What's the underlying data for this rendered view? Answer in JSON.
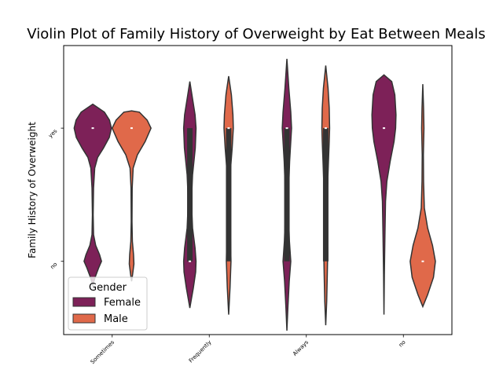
{
  "chart_data": {
    "type": "violin",
    "title": "Violin Plot of Family History of Overweight by Eat Between Meals",
    "xlabel": "",
    "ylabel": "Family History of Overweight",
    "categories": [
      "Sometimes",
      "Frequently",
      "Always",
      "no"
    ],
    "y_categories": [
      "yes",
      "no"
    ],
    "ylim": [
      -0.55,
      1.62
    ],
    "grid": false,
    "legend": {
      "title": "Gender",
      "placement": "lower-left",
      "entries": [
        "Female",
        "Male"
      ]
    },
    "series": [
      {
        "name": "Female",
        "color": "#7d2158",
        "violins": [
          {
            "category": "Sometimes",
            "ymin": -0.18,
            "ymax": 1.18,
            "median": 1,
            "q1": 1,
            "q3": 1,
            "profile": [
              [
                -0.18,
                0.0
              ],
              [
                -0.12,
                0.12
              ],
              [
                -0.05,
                0.3
              ],
              [
                0.0,
                0.45
              ],
              [
                0.05,
                0.35
              ],
              [
                0.12,
                0.15
              ],
              [
                0.2,
                0.04
              ],
              [
                0.35,
                0.02
              ],
              [
                0.55,
                0.04
              ],
              [
                0.7,
                0.1
              ],
              [
                0.78,
                0.25
              ],
              [
                0.85,
                0.55
              ],
              [
                0.93,
                0.85
              ],
              [
                1.0,
                0.96
              ],
              [
                1.06,
                0.86
              ],
              [
                1.12,
                0.6
              ],
              [
                1.18,
                0.0
              ]
            ]
          },
          {
            "category": "Frequently",
            "ymin": -0.35,
            "ymax": 1.35,
            "median": 0,
            "q1": 0,
            "q3": 1,
            "profile": [
              [
                -0.35,
                0.0
              ],
              [
                -0.2,
                0.18
              ],
              [
                -0.08,
                0.3
              ],
              [
                0.0,
                0.32
              ],
              [
                0.1,
                0.27
              ],
              [
                0.25,
                0.14
              ],
              [
                0.45,
                0.08
              ],
              [
                0.65,
                0.14
              ],
              [
                0.85,
                0.28
              ],
              [
                1.0,
                0.32
              ],
              [
                1.1,
                0.27
              ],
              [
                1.22,
                0.14
              ],
              [
                1.35,
                0.0
              ]
            ]
          },
          {
            "category": "Always",
            "ymin": -0.52,
            "ymax": 1.52,
            "median": 1,
            "q1": 0,
            "q3": 1,
            "profile": [
              [
                -0.52,
                0.0
              ],
              [
                -0.35,
                0.05
              ],
              [
                -0.15,
                0.12
              ],
              [
                0.0,
                0.2
              ],
              [
                0.15,
                0.13
              ],
              [
                0.35,
                0.08
              ],
              [
                0.55,
                0.09
              ],
              [
                0.75,
                0.14
              ],
              [
                0.9,
                0.2
              ],
              [
                1.0,
                0.24
              ],
              [
                1.12,
                0.2
              ],
              [
                1.3,
                0.1
              ],
              [
                1.52,
                0.0
              ]
            ]
          },
          {
            "category": "no",
            "ymin": -0.4,
            "ymax": 1.4,
            "median": 1,
            "q1": 1,
            "q3": 1,
            "profile": [
              [
                -0.4,
                0.0
              ],
              [
                -0.1,
                0.02
              ],
              [
                0.2,
                0.05
              ],
              [
                0.45,
                0.08
              ],
              [
                0.6,
                0.15
              ],
              [
                0.75,
                0.32
              ],
              [
                0.9,
                0.52
              ],
              [
                1.0,
                0.6
              ],
              [
                1.1,
                0.62
              ],
              [
                1.25,
                0.56
              ],
              [
                1.35,
                0.4
              ],
              [
                1.4,
                0.0
              ]
            ]
          }
        ]
      },
      {
        "name": "Male",
        "color": "#e0694a",
        "violins": [
          {
            "category": "Sometimes",
            "ymin": -0.15,
            "ymax": 1.13,
            "median": 1,
            "q1": 1,
            "q3": 1,
            "profile": [
              [
                -0.15,
                0.0
              ],
              [
                -0.1,
                0.05
              ],
              [
                -0.02,
                0.12
              ],
              [
                0.05,
                0.1
              ],
              [
                0.15,
                0.04
              ],
              [
                0.3,
                0.02
              ],
              [
                0.55,
                0.03
              ],
              [
                0.7,
                0.08
              ],
              [
                0.8,
                0.3
              ],
              [
                0.9,
                0.7
              ],
              [
                1.0,
                1.0
              ],
              [
                1.06,
                0.8
              ],
              [
                1.12,
                0.4
              ],
              [
                1.13,
                0.0
              ]
            ]
          },
          {
            "category": "Frequently",
            "ymin": -0.4,
            "ymax": 1.39,
            "median": 1,
            "q1": 0,
            "q3": 1,
            "profile": [
              [
                -0.4,
                0.0
              ],
              [
                -0.2,
                0.07
              ],
              [
                0.0,
                0.12
              ],
              [
                0.2,
                0.09
              ],
              [
                0.45,
                0.07
              ],
              [
                0.7,
                0.1
              ],
              [
                0.85,
                0.18
              ],
              [
                1.0,
                0.24
              ],
              [
                1.1,
                0.22
              ],
              [
                1.25,
                0.14
              ],
              [
                1.39,
                0.0
              ]
            ]
          },
          {
            "category": "Always",
            "ymin": -0.48,
            "ymax": 1.47,
            "median": 1,
            "q1": 0,
            "q3": 1,
            "profile": [
              [
                -0.48,
                0.0
              ],
              [
                -0.3,
                0.05
              ],
              [
                -0.1,
                0.08
              ],
              [
                0.05,
                0.1
              ],
              [
                0.25,
                0.08
              ],
              [
                0.5,
                0.08
              ],
              [
                0.75,
                0.14
              ],
              [
                0.9,
                0.18
              ],
              [
                1.0,
                0.2
              ],
              [
                1.15,
                0.18
              ],
              [
                1.3,
                0.12
              ],
              [
                1.47,
                0.0
              ]
            ]
          },
          {
            "category": "no",
            "ymin": -0.34,
            "ymax": 1.33,
            "median": 0,
            "q1": 0,
            "q3": 0,
            "profile": [
              [
                -0.34,
                0.0
              ],
              [
                -0.25,
                0.25
              ],
              [
                -0.12,
                0.55
              ],
              [
                0.0,
                0.65
              ],
              [
                0.12,
                0.5
              ],
              [
                0.25,
                0.25
              ],
              [
                0.4,
                0.08
              ],
              [
                0.6,
                0.04
              ],
              [
                0.8,
                0.03
              ],
              [
                1.0,
                0.06
              ],
              [
                1.15,
                0.04
              ],
              [
                1.33,
                0.0
              ]
            ]
          }
        ]
      }
    ]
  }
}
